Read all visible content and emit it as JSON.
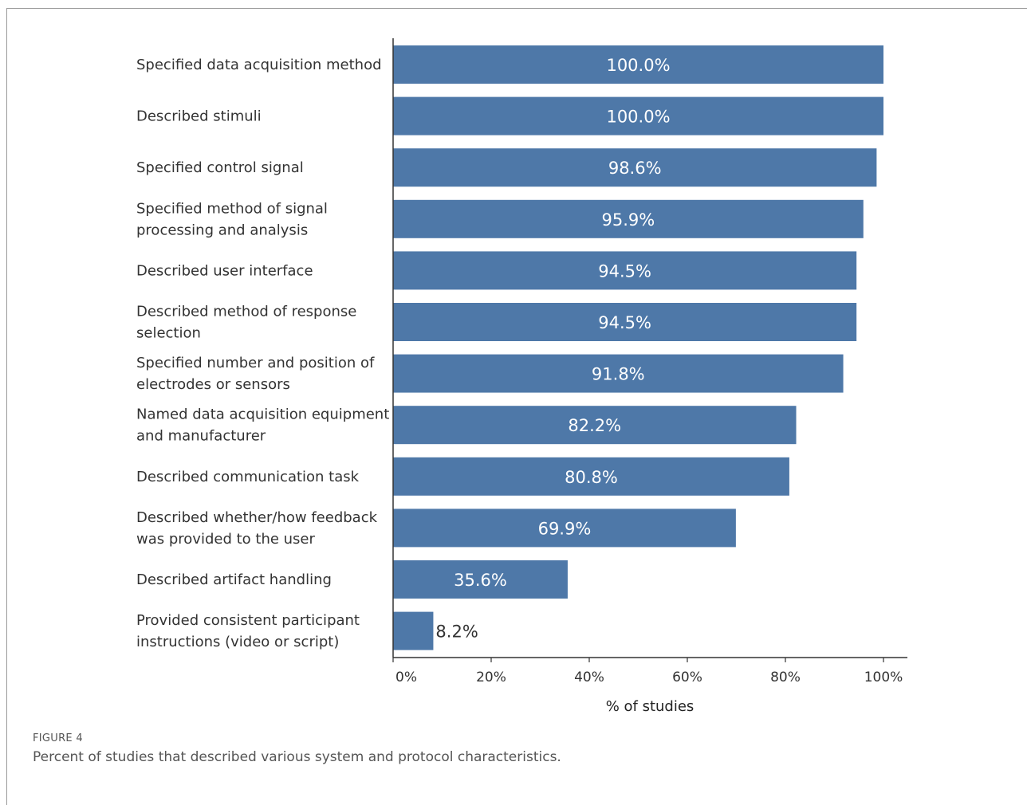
{
  "figure": {
    "label": "FIGURE 4",
    "caption": "Percent of studies that described various system and protocol characteristics."
  },
  "chart_data": {
    "type": "bar",
    "orientation": "horizontal",
    "categories": [
      [
        "Specified data acquisition method"
      ],
      [
        "Described stimuli"
      ],
      [
        "Specified control signal"
      ],
      [
        "Specified method of signal",
        "processing and analysis"
      ],
      [
        "Described user interface"
      ],
      [
        "Described method of response",
        "selection"
      ],
      [
        "Specified number and position of",
        "electrodes or sensors"
      ],
      [
        "Named data acquisition equipment",
        "and manufacturer"
      ],
      [
        "Described communication task"
      ],
      [
        "Described whether/how feedback",
        "was provided to the user"
      ],
      [
        "Described artifact handling"
      ],
      [
        "Provided consistent participant",
        "instructions (video or script)"
      ]
    ],
    "values": [
      100.0,
      100.0,
      98.6,
      95.9,
      94.5,
      94.5,
      91.8,
      82.2,
      80.8,
      69.9,
      35.6,
      8.2
    ],
    "value_labels": [
      "100.0%",
      "100.0%",
      "98.6%",
      "95.9%",
      "94.5%",
      "94.5%",
      "91.8%",
      "82.2%",
      "80.8%",
      "69.9%",
      "35.6%",
      "8.2%"
    ],
    "xlim": [
      0,
      100
    ],
    "xticks": [
      0,
      20,
      40,
      60,
      80,
      100
    ],
    "xtick_labels": [
      "0%",
      "20%",
      "40%",
      "60%",
      "80%",
      "100%"
    ],
    "xlabel": "% of studies",
    "grid": false,
    "bar_color": "#4e78a8"
  }
}
